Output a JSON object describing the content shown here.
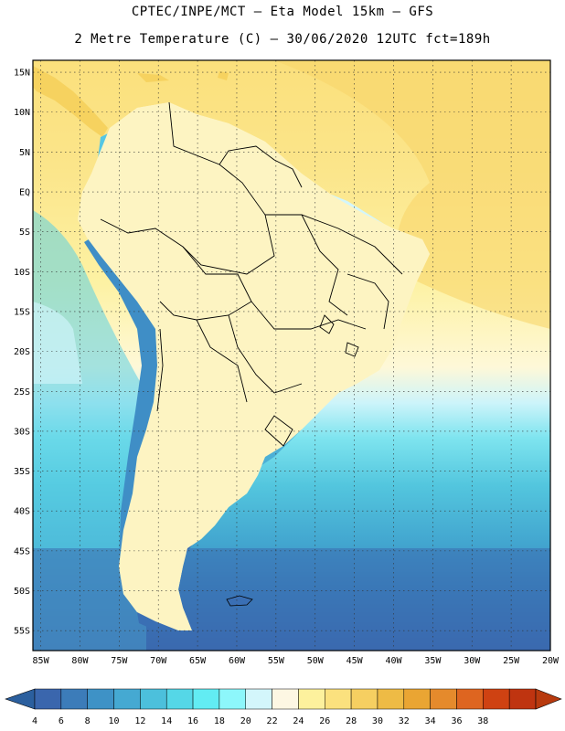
{
  "header": {
    "line1": "CPTEC/INPE/MCT –  Eta Model 15km – GFS",
    "line2": "2 Metre Temperature (C) – 30/06/2020 12UTC fct=189h"
  },
  "map": {
    "lat_labels": [
      "15N",
      "10N",
      "5N",
      "EQ",
      "5S",
      "10S",
      "15S",
      "20S",
      "25S",
      "30S",
      "35S",
      "40S",
      "45S",
      "50S",
      "55S"
    ],
    "lon_labels": [
      "85W",
      "80W",
      "75W",
      "70W",
      "65W",
      "60W",
      "55W",
      "50W",
      "45W",
      "40W",
      "35W",
      "30W",
      "25W",
      "20W"
    ],
    "lat_values": [
      15,
      10,
      5,
      0,
      -5,
      -10,
      -15,
      -20,
      -25,
      -30,
      -35,
      -40,
      -45,
      -50,
      -55
    ],
    "lon_values": [
      -85,
      -80,
      -75,
      -70,
      -65,
      -60,
      -55,
      -50,
      -45,
      -40,
      -35,
      -30,
      -25,
      -20
    ],
    "lat_range": [
      -57.5,
      16.5
    ],
    "lon_range": [
      -86,
      -20
    ],
    "grid": true
  },
  "colorbar": {
    "labels": [
      "4",
      "6",
      "8",
      "10",
      "12",
      "14",
      "16",
      "18",
      "20",
      "22",
      "24",
      "26",
      "28",
      "30",
      "32",
      "34",
      "36",
      "38"
    ],
    "colors": [
      "#3a66ad",
      "#3c7cb9",
      "#3e92c6",
      "#45a9d2",
      "#4cc0dc",
      "#55d7e7",
      "#62ecf3",
      "#8df7fb",
      "#d3f6fb",
      "#fdf7e3",
      "#fdf19d",
      "#fbe17e",
      "#f6cf61",
      "#eebb45",
      "#eaa533",
      "#e58a2c",
      "#de6520",
      "#cf4212",
      "#bf3410"
    ],
    "low_color": "#2b5f9e",
    "high_color": "#b83a0e"
  }
}
